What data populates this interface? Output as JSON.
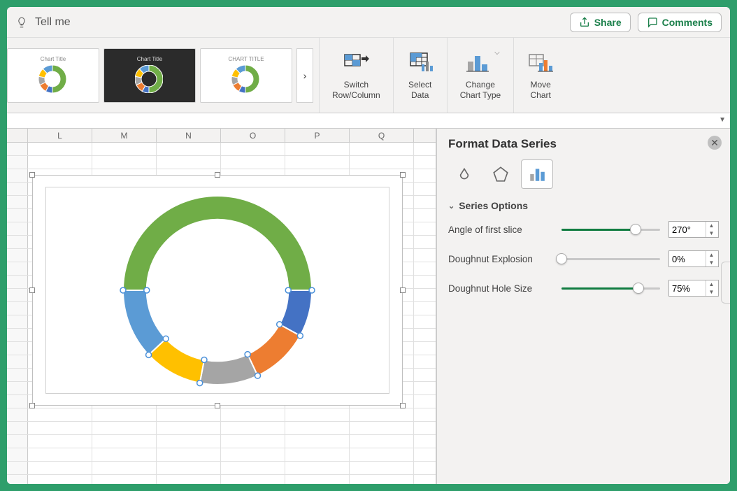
{
  "topbar": {
    "tell_me": "Tell me",
    "share_label": "Share",
    "comments_label": "Comments"
  },
  "ribbon": {
    "style_thumbs": [
      {
        "title": "Chart Title",
        "bg": "#ffffff"
      },
      {
        "title": "Chart Title",
        "bg": "#2b2b2b"
      },
      {
        "title": "CHART TITLE",
        "bg": "#ffffff"
      }
    ],
    "groups": {
      "switch": "Switch\nRow/Column",
      "select_data": "Select\nData",
      "change_type": "Change\nChart Type",
      "move_chart": "Move\nChart"
    }
  },
  "sheet": {
    "columns": [
      "L",
      "M",
      "N",
      "O",
      "P",
      "Q"
    ],
    "row_count": 26
  },
  "chart": {
    "type": "doughnut",
    "angle_first_slice_deg": 270,
    "explosion_pct": 0,
    "hole_size_pct": 75,
    "outer_radius": 135,
    "slices": [
      {
        "name": "green",
        "value": 50,
        "color": "#70ad47"
      },
      {
        "name": "dkblue",
        "value": 8,
        "color": "#4472c4"
      },
      {
        "name": "orange",
        "value": 10,
        "color": "#ed7d31"
      },
      {
        "name": "gray",
        "value": 10,
        "color": "#a5a5a5"
      },
      {
        "name": "yellow",
        "value": 10,
        "color": "#ffc000"
      },
      {
        "name": "ltblue",
        "value": 12,
        "color": "#5b9bd5"
      }
    ],
    "stroke_color": "#ffffff",
    "stroke_width": 2,
    "selection_marker_color": "#4a90d9"
  },
  "thumb_ring": {
    "slices": [
      {
        "value": 50,
        "color": "#70ad47"
      },
      {
        "value": 8,
        "color": "#4472c4"
      },
      {
        "value": 10,
        "color": "#ed7d31"
      },
      {
        "value": 10,
        "color": "#a5a5a5"
      },
      {
        "value": 10,
        "color": "#ffc000"
      },
      {
        "value": 12,
        "color": "#5b9bd5"
      }
    ],
    "hole": 0.55
  },
  "pane": {
    "title": "Format Data Series",
    "section": "Series Options",
    "options": {
      "angle": {
        "label": "Angle of first slice",
        "value": "270°",
        "slider_pct": 75
      },
      "explosion": {
        "label": "Doughnut Explosion",
        "value": "0%",
        "slider_pct": 0
      },
      "hole": {
        "label": "Doughnut Hole Size",
        "value": "75%",
        "slider_pct": 78
      }
    }
  },
  "colors": {
    "accent_green": "#107c41",
    "frame_green": "#2e9e6b"
  }
}
